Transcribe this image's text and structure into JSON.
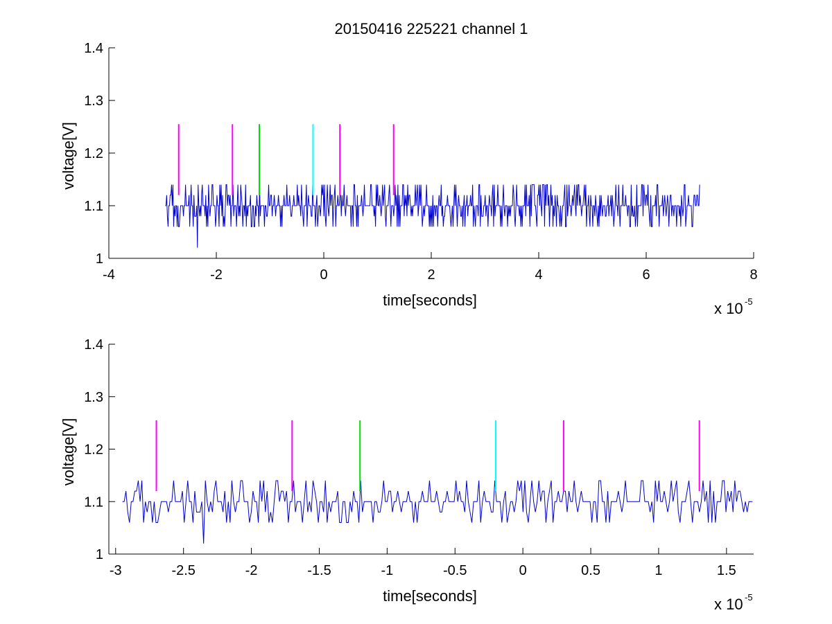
{
  "colors": {
    "signal": "#0000CC",
    "marker_magenta": "#FF00FF",
    "marker_green": "#00DD00",
    "marker_cyan": "#00FFFF",
    "axes": "#000000",
    "background": "#FFFFFF"
  },
  "chart_data": [
    {
      "type": "line",
      "title": "20150416 225221 channel 1",
      "xlabel": "time[seconds]",
      "ylabel": "voltage[V]",
      "x_scale_label": "x 10",
      "x_scale_exponent": "-5",
      "xlim": [
        -4,
        8
      ],
      "ylim": [
        1,
        1.4
      ],
      "xticks": [
        -4,
        -2,
        0,
        2,
        4,
        6,
        8
      ],
      "xtick_labels": [
        "-4",
        "-2",
        "0",
        "2",
        "4",
        "6",
        "8"
      ],
      "yticks": [
        1,
        1.1,
        1.2,
        1.3,
        1.4
      ],
      "ytick_labels": [
        "1",
        "1.1",
        "1.2",
        "1.3",
        "1.4"
      ],
      "grid": false,
      "legend": "none",
      "series": [
        {
          "kind": "signal",
          "x_start": -2.95,
          "x_end": 7.0,
          "baseline": 1.1,
          "levels": [
            1.06,
            1.08,
            1.1,
            1.12,
            1.14
          ],
          "min_dip": {
            "x": -2.35,
            "y": 1.02
          }
        }
      ],
      "markers": [
        {
          "x": -2.7,
          "y_from": 1.12,
          "y_to": 1.255,
          "color": "magenta"
        },
        {
          "x": -1.7,
          "y_from": 1.12,
          "y_to": 1.255,
          "color": "magenta"
        },
        {
          "x": -1.2,
          "y_from": 1.12,
          "y_to": 1.255,
          "color": "green"
        },
        {
          "x": -0.2,
          "y_from": 1.12,
          "y_to": 1.255,
          "color": "cyan"
        },
        {
          "x": 0.3,
          "y_from": 1.12,
          "y_to": 1.255,
          "color": "magenta"
        },
        {
          "x": 1.3,
          "y_from": 1.12,
          "y_to": 1.255,
          "color": "magenta"
        }
      ]
    },
    {
      "type": "line",
      "title": "",
      "xlabel": "time[seconds]",
      "ylabel": "voltage[V]",
      "x_scale_label": "x 10",
      "x_scale_exponent": "-5",
      "xlim": [
        -3.05,
        1.7
      ],
      "ylim": [
        1,
        1.4
      ],
      "xticks": [
        -3,
        -2.5,
        -2,
        -1.5,
        -1,
        -0.5,
        0,
        0.5,
        1,
        1.5
      ],
      "xtick_labels": [
        "-3",
        "-2.5",
        "-2",
        "-1.5",
        "-1",
        "-0.5",
        "0",
        "0.5",
        "1",
        "1.5"
      ],
      "yticks": [
        1,
        1.1,
        1.2,
        1.3,
        1.4
      ],
      "ytick_labels": [
        "1",
        "1.1",
        "1.2",
        "1.3",
        "1.4"
      ],
      "grid": false,
      "legend": "none",
      "series": [
        {
          "kind": "signal",
          "x_start": -2.95,
          "x_end": 1.7,
          "baseline": 1.1,
          "levels": [
            1.06,
            1.08,
            1.1,
            1.12,
            1.14
          ],
          "min_dip": {
            "x": -2.35,
            "y": 1.02
          }
        }
      ],
      "markers": [
        {
          "x": -2.7,
          "y_from": 1.12,
          "y_to": 1.255,
          "color": "magenta"
        },
        {
          "x": -1.7,
          "y_from": 1.12,
          "y_to": 1.255,
          "color": "magenta"
        },
        {
          "x": -1.2,
          "y_from": 1.12,
          "y_to": 1.255,
          "color": "green"
        },
        {
          "x": -0.2,
          "y_from": 1.12,
          "y_to": 1.255,
          "color": "cyan"
        },
        {
          "x": 0.3,
          "y_from": 1.12,
          "y_to": 1.255,
          "color": "magenta"
        },
        {
          "x": 1.3,
          "y_from": 1.12,
          "y_to": 1.255,
          "color": "magenta"
        }
      ]
    }
  ]
}
